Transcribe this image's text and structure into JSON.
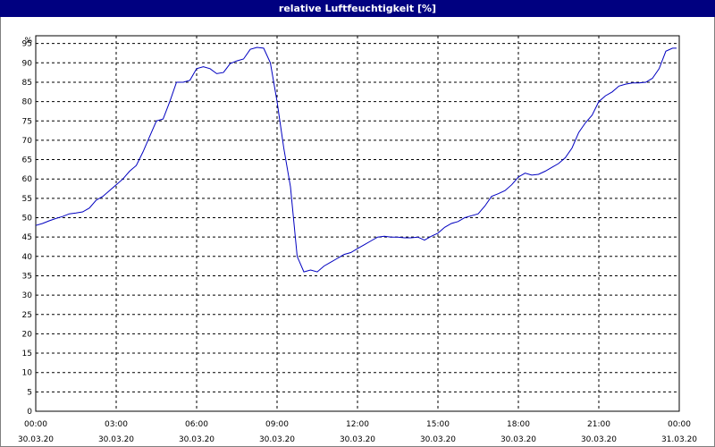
{
  "window": {
    "title": "relative Luftfeuchtigkeit [%]"
  },
  "colors": {
    "titlebar": "#000080",
    "line": "#0000c0",
    "grid": "#000000",
    "background": "#ffffff"
  },
  "chart_data": {
    "type": "line",
    "title": "relative Luftfeuchtigkeit [%]",
    "ylabel": "%",
    "xlabel": "",
    "ylim": [
      0,
      97
    ],
    "xlim_hours": [
      0,
      24
    ],
    "grid": true,
    "legend": "none",
    "y_ticks": [
      0,
      5,
      10,
      15,
      20,
      25,
      30,
      35,
      40,
      45,
      50,
      55,
      60,
      65,
      70,
      75,
      80,
      85,
      90,
      95
    ],
    "y_unit_label": "%",
    "x_ticks": [
      {
        "time": "00:00",
        "date": "30.03.20"
      },
      {
        "time": "03:00",
        "date": "30.03.20"
      },
      {
        "time": "06:00",
        "date": "30.03.20"
      },
      {
        "time": "09:00",
        "date": "30.03.20"
      },
      {
        "time": "12:00",
        "date": "30.03.20"
      },
      {
        "time": "15:00",
        "date": "30.03.20"
      },
      {
        "time": "18:00",
        "date": "30.03.20"
      },
      {
        "time": "21:00",
        "date": "30.03.20"
      },
      {
        "time": "00:00",
        "date": "31.03.20"
      }
    ],
    "series": [
      {
        "values": [
          [
            0.0,
            48
          ],
          [
            0.25,
            48.5
          ],
          [
            0.5,
            49.2
          ],
          [
            0.75,
            49.8
          ],
          [
            1.0,
            50.3
          ],
          [
            1.25,
            51
          ],
          [
            1.5,
            51.2
          ],
          [
            1.75,
            51.5
          ],
          [
            2.0,
            52.5
          ],
          [
            2.25,
            54.5
          ],
          [
            2.5,
            55.5
          ],
          [
            2.75,
            57
          ],
          [
            3.0,
            58.5
          ],
          [
            3.25,
            60
          ],
          [
            3.5,
            62
          ],
          [
            3.75,
            63.5
          ],
          [
            4.0,
            67
          ],
          [
            4.25,
            71
          ],
          [
            4.5,
            75
          ],
          [
            4.75,
            75.5
          ],
          [
            5.0,
            80
          ],
          [
            5.25,
            85
          ],
          [
            5.5,
            85
          ],
          [
            5.75,
            85.5
          ],
          [
            6.0,
            88.5
          ],
          [
            6.25,
            89
          ],
          [
            6.5,
            88.5
          ],
          [
            6.75,
            87.2
          ],
          [
            7.0,
            87.5
          ],
          [
            7.25,
            89.8
          ],
          [
            7.5,
            90.5
          ],
          [
            7.75,
            91
          ],
          [
            8.0,
            93.5
          ],
          [
            8.25,
            94
          ],
          [
            8.5,
            93.8
          ],
          [
            8.75,
            90
          ],
          [
            9.0,
            80
          ],
          [
            9.25,
            68
          ],
          [
            9.5,
            58
          ],
          [
            9.75,
            40
          ],
          [
            10.0,
            36
          ],
          [
            10.25,
            36.5
          ],
          [
            10.5,
            36
          ],
          [
            10.75,
            37.5
          ],
          [
            11.0,
            38.5
          ],
          [
            11.25,
            39.5
          ],
          [
            11.5,
            40.5
          ],
          [
            11.75,
            41
          ],
          [
            12.0,
            42
          ],
          [
            12.25,
            43
          ],
          [
            12.5,
            44
          ],
          [
            12.75,
            45
          ],
          [
            13.0,
            45.2
          ],
          [
            13.25,
            45
          ],
          [
            13.5,
            45
          ],
          [
            13.75,
            44.8
          ],
          [
            14.0,
            44.8
          ],
          [
            14.25,
            45
          ],
          [
            14.5,
            44.2
          ],
          [
            14.75,
            45.2
          ],
          [
            15.0,
            46
          ],
          [
            15.25,
            47.5
          ],
          [
            15.5,
            48.5
          ],
          [
            15.75,
            49
          ],
          [
            16.0,
            50
          ],
          [
            16.25,
            50.5
          ],
          [
            16.5,
            51
          ],
          [
            16.75,
            53
          ],
          [
            17.0,
            55.5
          ],
          [
            17.25,
            56.2
          ],
          [
            17.5,
            57
          ],
          [
            17.75,
            58.5
          ],
          [
            18.0,
            60.5
          ],
          [
            18.25,
            61.5
          ],
          [
            18.5,
            61
          ],
          [
            18.75,
            61.2
          ],
          [
            19.0,
            62
          ],
          [
            19.25,
            63
          ],
          [
            19.5,
            64
          ],
          [
            19.75,
            65.5
          ],
          [
            20.0,
            68
          ],
          [
            20.25,
            72
          ],
          [
            20.5,
            74.5
          ],
          [
            20.75,
            76.5
          ],
          [
            21.0,
            80
          ],
          [
            21.25,
            81.5
          ],
          [
            21.5,
            82.5
          ],
          [
            21.75,
            84
          ],
          [
            22.0,
            84.5
          ],
          [
            22.25,
            84.8
          ],
          [
            22.5,
            84.8
          ],
          [
            22.75,
            85
          ],
          [
            23.0,
            86
          ],
          [
            23.25,
            88.5
          ],
          [
            23.5,
            93
          ],
          [
            23.75,
            93.8
          ],
          [
            23.9,
            93.8
          ]
        ]
      }
    ]
  }
}
